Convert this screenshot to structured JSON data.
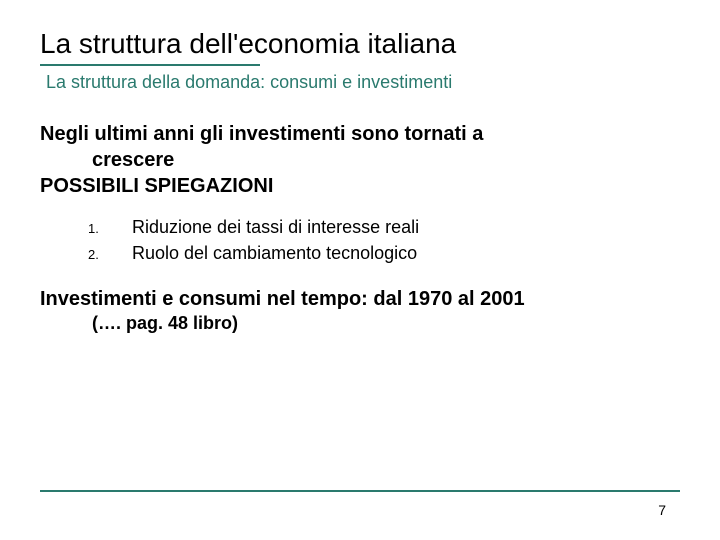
{
  "colors": {
    "accent": "#2a7a6e",
    "text": "#000000",
    "background": "#ffffff"
  },
  "title": "La struttura dell'economia italiana",
  "subtitle": "La struttura della domanda: consumi e investimenti",
  "heading_line1": "Negli ultimi anni gli investimenti sono tornati a",
  "heading_line2": "crescere",
  "heading_sub": "POSSIBILI SPIEGAZIONI",
  "list": [
    {
      "num": "1.",
      "text": "Riduzione dei tassi di interesse reali"
    },
    {
      "num": "2.",
      "text": "Ruolo del cambiamento tecnologico"
    }
  ],
  "section2": "Investimenti e consumi nel tempo: dal 1970 al 2001",
  "section2_sub": "(…. pag. 48 libro)",
  "page_number": "7"
}
